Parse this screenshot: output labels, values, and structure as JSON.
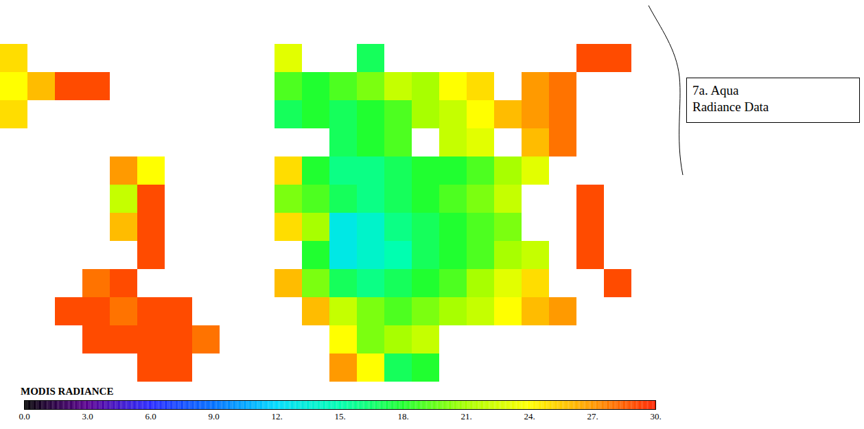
{
  "chart_data": {
    "type": "heatmap",
    "tick_labels": false,
    "annotation": [
      "7a. Aqua",
      "Radiance Data"
    ],
    "cells": [
      [
        25,
        null,
        null,
        null,
        null,
        null,
        null,
        null,
        null,
        null,
        23,
        null,
        null,
        17,
        null,
        null,
        null,
        null,
        null,
        null,
        null,
        29,
        29,
        null
      ],
      [
        24,
        26,
        29,
        29,
        null,
        null,
        null,
        null,
        null,
        null,
        19,
        18,
        19,
        20,
        22,
        21,
        24,
        25,
        null,
        27,
        28,
        null,
        null,
        null
      ],
      [
        25,
        null,
        null,
        null,
        null,
        null,
        null,
        null,
        null,
        null,
        17,
        18,
        17,
        18,
        19,
        21,
        22,
        24,
        26,
        27,
        28,
        null,
        null,
        null
      ],
      [
        null,
        null,
        null,
        null,
        null,
        null,
        null,
        null,
        null,
        null,
        null,
        null,
        17,
        18,
        19,
        null,
        22,
        23,
        null,
        26,
        28,
        null,
        null,
        null
      ],
      [
        null,
        null,
        null,
        null,
        27,
        24,
        null,
        null,
        null,
        null,
        25,
        18,
        16,
        16,
        17,
        18,
        18,
        19,
        21,
        23,
        null,
        null,
        null,
        null
      ],
      [
        null,
        null,
        null,
        null,
        22,
        29,
        null,
        null,
        null,
        null,
        20,
        19,
        17,
        16,
        17,
        18,
        19,
        20,
        22,
        null,
        null,
        29,
        null,
        null
      ],
      [
        null,
        null,
        null,
        null,
        26,
        29,
        null,
        null,
        null,
        null,
        25,
        21,
        13,
        14,
        16,
        17,
        18,
        19,
        20,
        null,
        null,
        29,
        null,
        null
      ],
      [
        null,
        null,
        null,
        null,
        null,
        29,
        null,
        null,
        null,
        null,
        null,
        18,
        13,
        14,
        15,
        17,
        18,
        19,
        21,
        22,
        null,
        29,
        null,
        null
      ],
      [
        null,
        null,
        null,
        28,
        29,
        null,
        null,
        null,
        null,
        null,
        26,
        20,
        17,
        16,
        17,
        18,
        19,
        21,
        23,
        25,
        null,
        null,
        29,
        null
      ],
      [
        null,
        null,
        29,
        29,
        28,
        29,
        29,
        null,
        null,
        null,
        null,
        26,
        22,
        20,
        19,
        20,
        21,
        22,
        24,
        26,
        27,
        null,
        null,
        null
      ],
      [
        null,
        null,
        null,
        29,
        29,
        29,
        29,
        28,
        null,
        null,
        null,
        null,
        24,
        20,
        21,
        22,
        null,
        null,
        null,
        null,
        null,
        null,
        null,
        null
      ],
      [
        null,
        null,
        null,
        null,
        null,
        29,
        29,
        null,
        null,
        null,
        null,
        null,
        27,
        24,
        17,
        18,
        null,
        null,
        null,
        null,
        null,
        null,
        null,
        null
      ]
    ],
    "colorbar": {
      "label": "MODIS RADIANCE",
      "range": [
        0,
        30
      ],
      "ticks": [
        {
          "value": 0,
          "label": "0.0"
        },
        {
          "value": 3,
          "label": "3.0"
        },
        {
          "value": 6,
          "label": "6.0"
        },
        {
          "value": 9,
          "label": "9.0"
        },
        {
          "value": 12,
          "label": "12."
        },
        {
          "value": 15,
          "label": "15."
        },
        {
          "value": 18,
          "label": "18."
        },
        {
          "value": 21,
          "label": "21."
        },
        {
          "value": 24,
          "label": "24."
        },
        {
          "value": 27,
          "label": "27."
        },
        {
          "value": 30,
          "label": "30."
        }
      ],
      "colors": [
        "#000000",
        "#5a0090",
        "#2a2aff",
        "#0070ff",
        "#00dcff",
        "#00ffb0",
        "#20ff30",
        "#a8ff00",
        "#ffff00",
        "#ff9a00",
        "#ff2400"
      ]
    }
  }
}
